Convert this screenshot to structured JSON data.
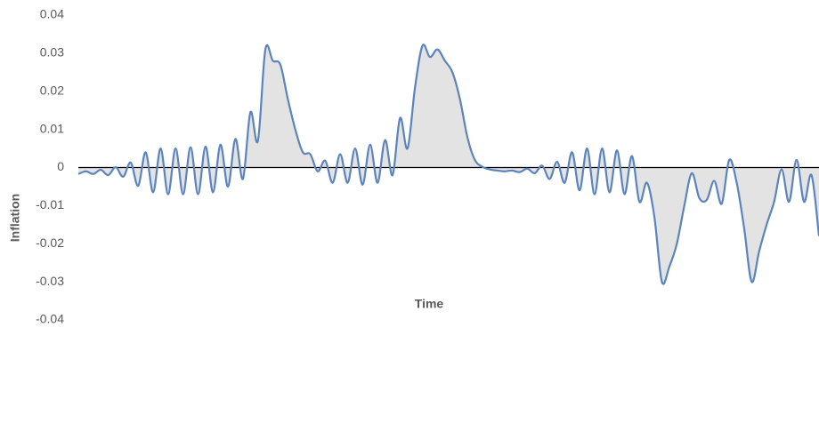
{
  "chart_data": {
    "type": "area",
    "x_label": "Time",
    "y_label": "Inflation",
    "categories": [
      null,
      null,
      null,
      null,
      null,
      null,
      null,
      null,
      null,
      null,
      null,
      null,
      null,
      null,
      null,
      null,
      null,
      null,
      null,
      null,
      null,
      null,
      null,
      null,
      null,
      null,
      null,
      null,
      null,
      null,
      null,
      null,
      null,
      null,
      null,
      null,
      null,
      null,
      null,
      null,
      null,
      null,
      null,
      null,
      null,
      null,
      null,
      null,
      null,
      null,
      null,
      null,
      null,
      null,
      null,
      null,
      null,
      null,
      null,
      null,
      null,
      null,
      null,
      null,
      null,
      null,
      null,
      null,
      null,
      null,
      null,
      null,
      null,
      null,
      null,
      null,
      null,
      null,
      null,
      null,
      null,
      null,
      null,
      null,
      null,
      null,
      null,
      null,
      null,
      null,
      null,
      null,
      null,
      null,
      null,
      null,
      null,
      null,
      null,
      null
    ],
    "values": [
      -0.0017,
      -0.001,
      -0.0017,
      -0.0006,
      -0.002,
      0.0001,
      -0.0024,
      0.0013,
      -0.0048,
      0.004,
      -0.0065,
      0.005,
      -0.007,
      0.005,
      -0.007,
      0.0053,
      -0.007,
      0.0055,
      -0.0065,
      0.006,
      -0.005,
      0.0075,
      -0.003,
      0.0145,
      0.007,
      0.031,
      0.028,
      0.027,
      0.018,
      0.01,
      0.004,
      0.0035,
      -0.001,
      0.0018,
      -0.004,
      0.0035,
      -0.004,
      0.005,
      -0.0045,
      0.006,
      -0.004,
      0.0072,
      -0.002,
      0.013,
      0.005,
      0.021,
      0.032,
      0.029,
      0.031,
      0.028,
      0.025,
      0.018,
      0.008,
      0.002,
      0.0002,
      -0.0005,
      -0.0008,
      -0.001,
      -0.0008,
      -0.0012,
      -0.0003,
      -0.0015,
      0.0005,
      -0.003,
      0.0015,
      -0.004,
      0.004,
      -0.006,
      0.005,
      -0.007,
      0.005,
      -0.0065,
      0.0045,
      -0.007,
      0.003,
      -0.009,
      -0.004,
      -0.013,
      -0.03,
      -0.026,
      -0.02,
      -0.01,
      -0.0015,
      -0.008,
      -0.0085,
      -0.0035,
      -0.0095,
      0.002,
      -0.004,
      -0.016,
      -0.03,
      -0.022,
      -0.015,
      -0.009,
      -0.0005,
      -0.009,
      0.002,
      -0.009,
      -0.002,
      -0.018
    ],
    "color": "#5b84bd",
    "fill_color": "#e3e3e3",
    "ylim": [
      -0.04,
      0.04
    ],
    "yticks": [
      0.04,
      0.03,
      0.02,
      0.01,
      0,
      -0.01,
      -0.02,
      -0.03,
      -0.04
    ],
    "grid": false
  }
}
